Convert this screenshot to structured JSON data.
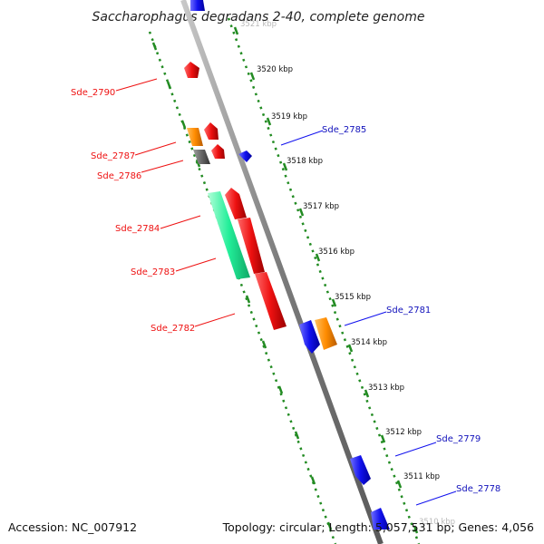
{
  "title": "Saccharophagus degradans 2-40, complete genome",
  "footer": {
    "accession": "Accession: NC_007912",
    "summary": "Topology: circular; Length: 5,057,531 bp; Genes: 4,056"
  },
  "scale": {
    "ticks": [
      "3521 kbp",
      "3520 kbp",
      "3519 kbp",
      "3518 kbp",
      "3517 kbp",
      "3516 kbp",
      "3515 kbp",
      "3514 kbp",
      "3513 kbp",
      "3512 kbp",
      "3511 kbp",
      "3510 kbp"
    ]
  },
  "genes": {
    "labels": [
      "Sde_2790",
      "Sde_2787",
      "Sde_2786",
      "Sde_2784",
      "Sde_2783",
      "Sde_2782",
      "Sde_2785",
      "Sde_2781",
      "Sde_2779",
      "Sde_2778"
    ]
  },
  "colors": {
    "reverse_cds": "#ee1111",
    "forward_cds": "#1111ee",
    "orange_feature": "#ff8c00",
    "grey_feature": "#666666",
    "teal_feature": "#22ee99",
    "backbone": "#888888",
    "dotted_track": "#228b22"
  }
}
